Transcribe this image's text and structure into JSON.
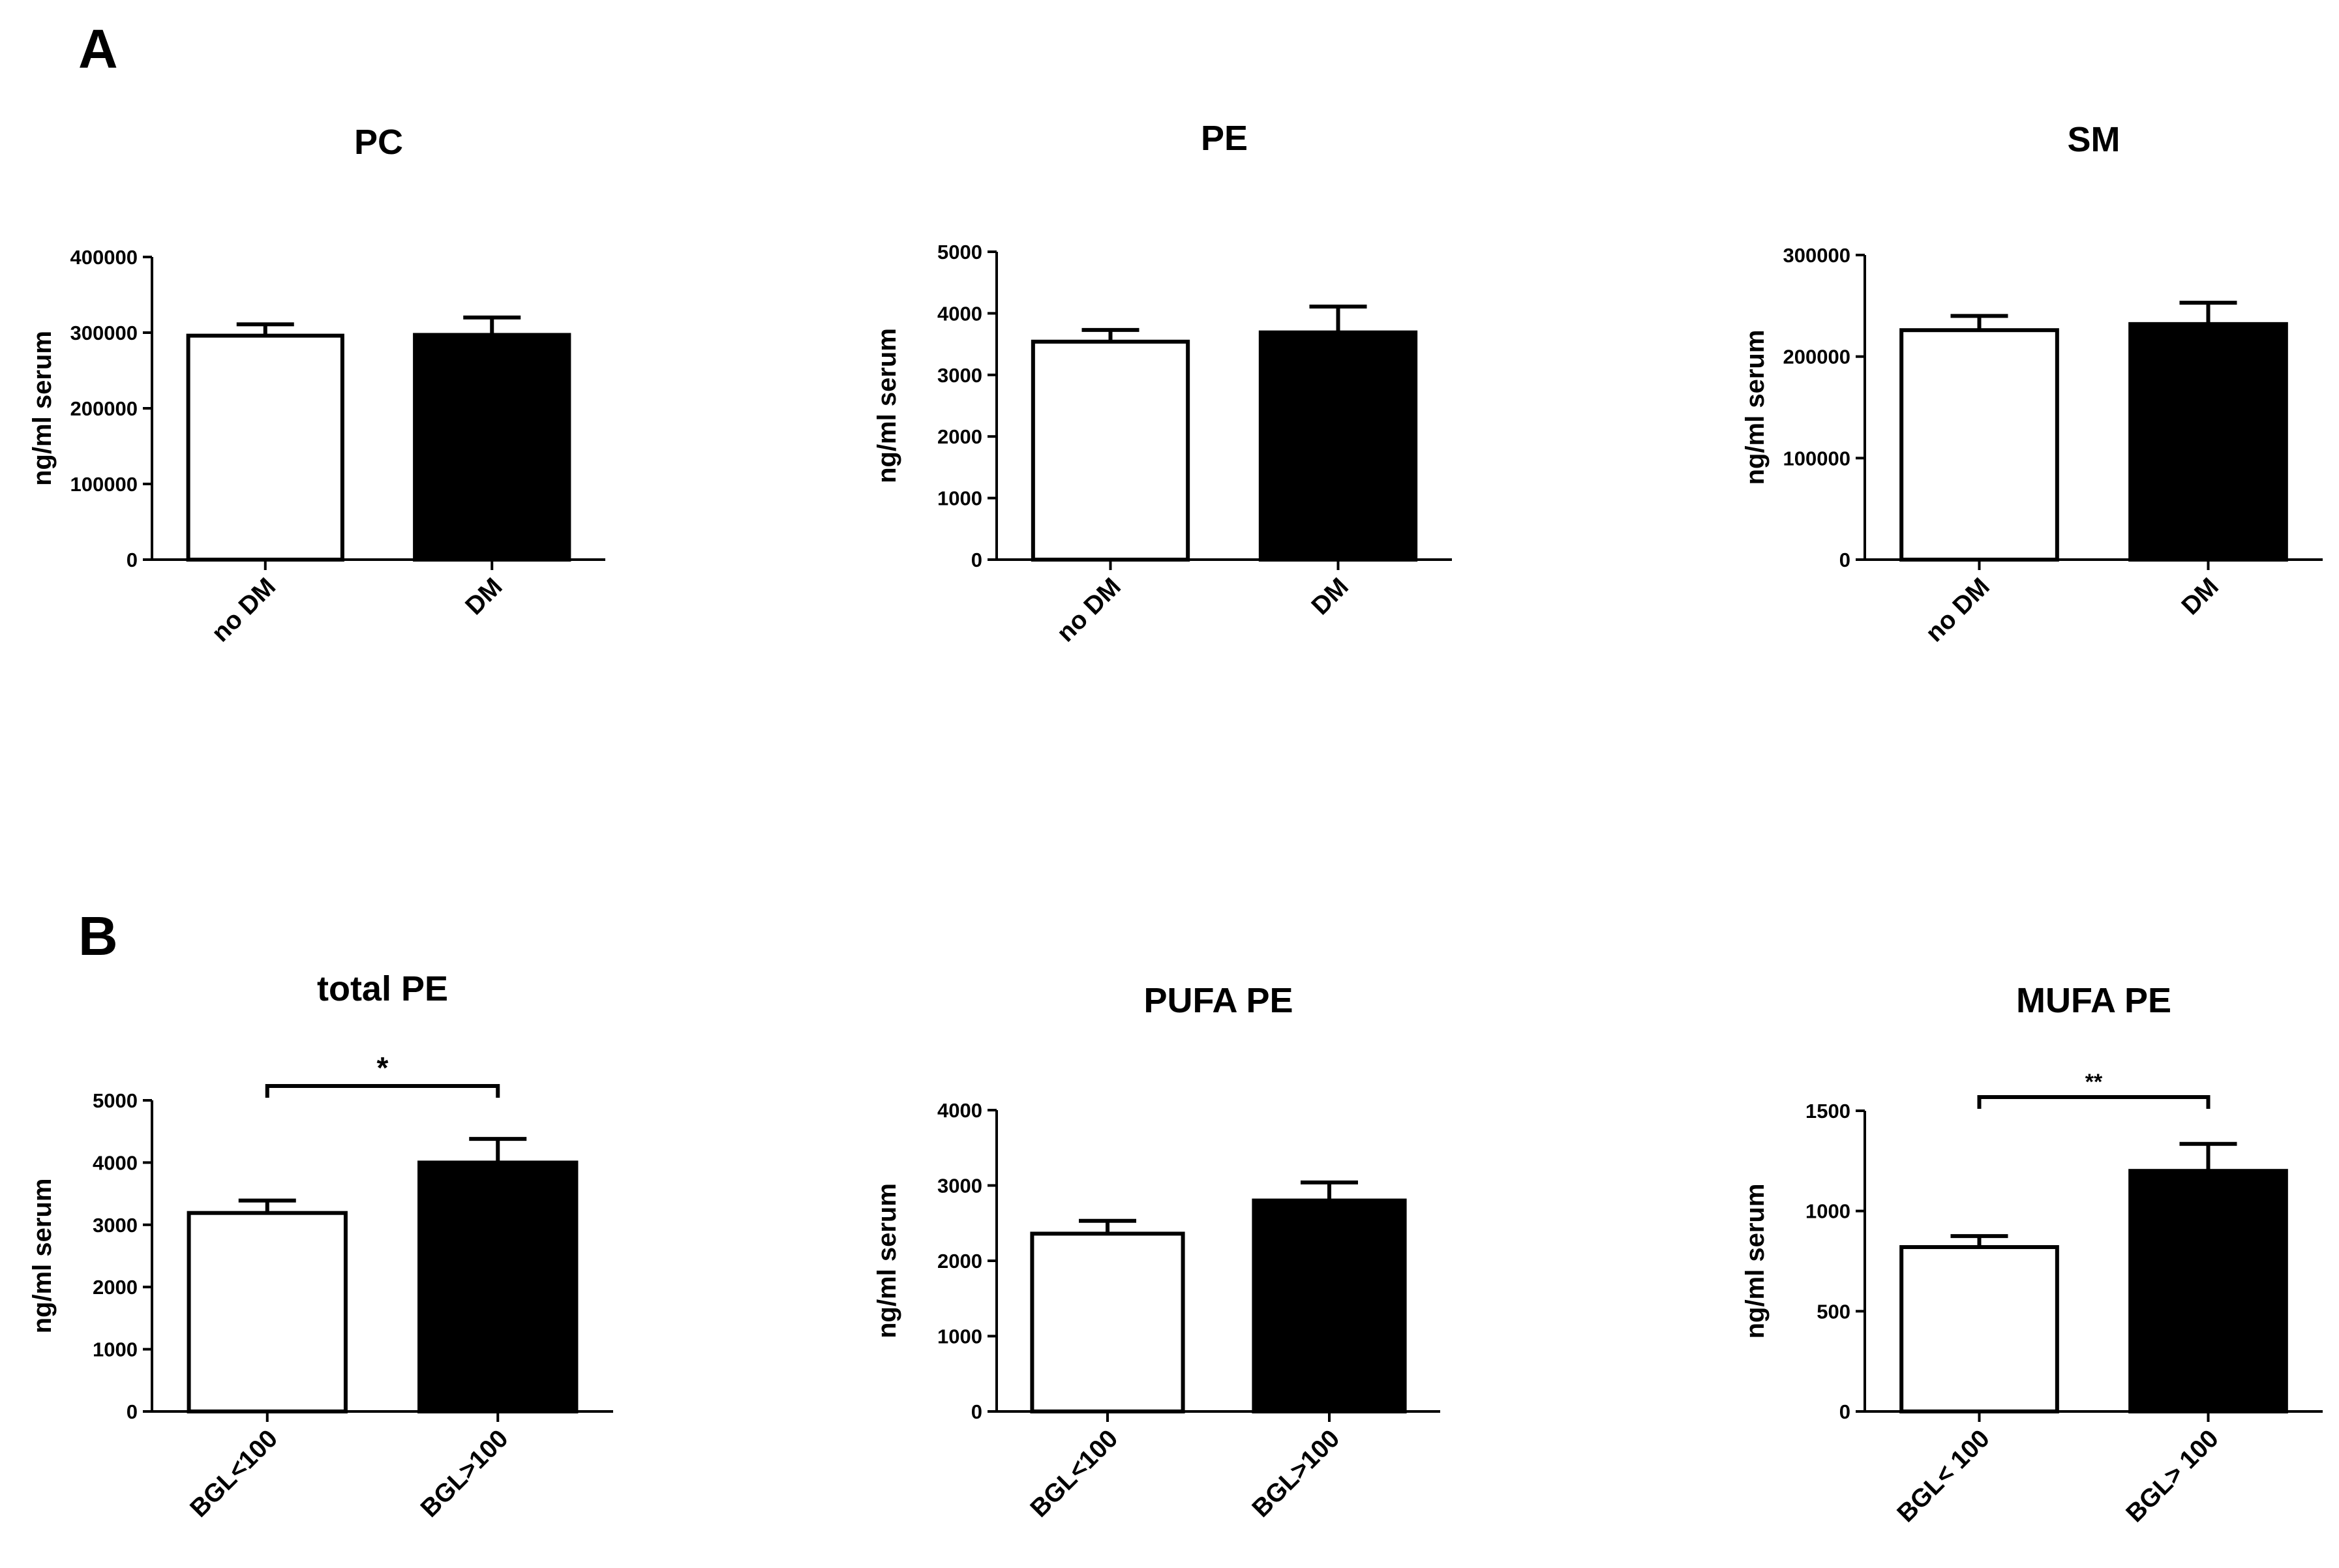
{
  "panels": [
    {
      "label": "A"
    },
    {
      "label": "B"
    }
  ],
  "chart_data": [
    {
      "type": "bar",
      "panel": "A",
      "title": "PC",
      "ylabel": "ng/ml serum",
      "xlabel": "",
      "categories": [
        "no DM",
        "DM"
      ],
      "values": [
        296000,
        297000
      ],
      "error": [
        15000,
        23000
      ],
      "fills": [
        "#ffffff",
        "#000000"
      ],
      "ylim": [
        0,
        400000
      ],
      "yticks": [
        "0",
        "100000",
        "200000",
        "300000",
        "400000"
      ],
      "significance": null
    },
    {
      "type": "bar",
      "panel": "A",
      "title": "PE",
      "ylabel": "ng/ml serum",
      "xlabel": "",
      "categories": [
        "no DM",
        "DM"
      ],
      "values": [
        3540,
        3690
      ],
      "error": [
        190,
        420
      ],
      "fills": [
        "#ffffff",
        "#000000"
      ],
      "ylim": [
        0,
        5000
      ],
      "yticks": [
        "0",
        "1000",
        "2000",
        "3000",
        "4000",
        "5000"
      ],
      "significance": null
    },
    {
      "type": "bar",
      "panel": "A",
      "title": "SM",
      "ylabel": "ng/ml serum",
      "xlabel": "",
      "categories": [
        "no DM",
        "DM"
      ],
      "values": [
        226000,
        232000
      ],
      "error": [
        14000,
        21000
      ],
      "fills": [
        "#ffffff",
        "#000000"
      ],
      "ylim": [
        0,
        300000
      ],
      "yticks": [
        "0",
        "100000",
        "200000",
        "300000"
      ],
      "significance": null
    },
    {
      "type": "bar",
      "panel": "B",
      "title": "total PE",
      "ylabel": "ng/ml serum",
      "xlabel": "",
      "categories": [
        "BGL<100",
        "BGL>100"
      ],
      "values": [
        3190,
        4000
      ],
      "error": [
        200,
        380
      ],
      "fills": [
        "#ffffff",
        "#000000"
      ],
      "ylim": [
        0,
        5000
      ],
      "yticks": [
        "0",
        "1000",
        "2000",
        "3000",
        "4000",
        "5000"
      ],
      "significance": "*"
    },
    {
      "type": "bar",
      "panel": "B",
      "title": "PUFA PE",
      "ylabel": "ng/ml serum",
      "xlabel": "",
      "categories": [
        "BGL<100",
        "BGL>100"
      ],
      "values": [
        2360,
        2800
      ],
      "error": [
        170,
        240
      ],
      "fills": [
        "#ffffff",
        "#000000"
      ],
      "ylim": [
        0,
        4000
      ],
      "yticks": [
        "0",
        "1000",
        "2000",
        "3000",
        "4000"
      ],
      "significance": null
    },
    {
      "type": "bar",
      "panel": "B",
      "title": "MUFA PE",
      "ylabel": "ng/ml serum",
      "xlabel": "",
      "categories": [
        "BGL< 100",
        "BGL> 100"
      ],
      "values": [
        820,
        1200
      ],
      "error": [
        55,
        135
      ],
      "fills": [
        "#ffffff",
        "#000000"
      ],
      "ylim": [
        0,
        1500
      ],
      "yticks": [
        "0",
        "500",
        "1000",
        "1500"
      ],
      "significance": "**"
    }
  ]
}
